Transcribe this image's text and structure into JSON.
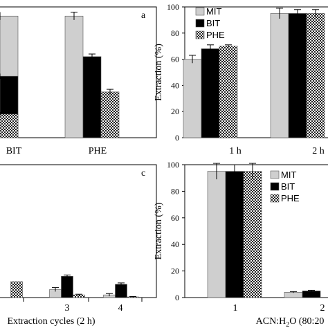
{
  "chart_data": [
    {
      "type": "bar",
      "panel_label": "a",
      "categories": [
        "",
        "BIT",
        "PHE"
      ],
      "xlabel": "",
      "ylabel": "",
      "ylim": [
        0,
        100
      ],
      "series": [
        {
          "name": "MIT",
          "values": [
            93,
            93,
            93
          ],
          "errors": [
            3,
            3,
            3
          ]
        },
        {
          "name": "BIT",
          "values": [
            null,
            62,
            47
          ],
          "errors": [
            null,
            2,
            2
          ]
        },
        {
          "name": "PHE",
          "values": [
            null,
            35,
            18
          ],
          "errors": [
            null,
            2,
            1.5
          ]
        }
      ]
    },
    {
      "type": "bar",
      "panel_label": "",
      "categories": [
        "1 h",
        "2 h"
      ],
      "xlabel": "",
      "ylabel": "Extraction (%)",
      "ylim": [
        0,
        100
      ],
      "yticks": [
        0,
        20,
        40,
        60,
        80,
        100
      ],
      "legend": [
        "MIT",
        "BIT",
        "PHE"
      ],
      "legend_position": "top-left",
      "series": [
        {
          "name": "MIT",
          "values": [
            60,
            95
          ],
          "errors": [
            3,
            4
          ]
        },
        {
          "name": "BIT",
          "values": [
            68,
            95
          ],
          "errors": [
            3,
            3
          ]
        },
        {
          "name": "PHE",
          "values": [
            70,
            95
          ],
          "errors": [
            1,
            3
          ]
        }
      ]
    },
    {
      "type": "bar",
      "panel_label": "c",
      "categories": [
        "",
        "3",
        "4"
      ],
      "xlabel": "Extraction cycles (2 h)",
      "ylabel": "",
      "ylim": [
        0,
        100
      ],
      "series": [
        {
          "name": "MIT",
          "values": [
            null,
            6,
            2
          ],
          "errors": [
            null,
            1.5,
            1
          ]
        },
        {
          "name": "BIT",
          "values": [
            null,
            16,
            10
          ],
          "errors": [
            null,
            1,
            1
          ]
        },
        {
          "name": "PHE",
          "values": [
            12,
            2,
            0.5
          ],
          "errors": [
            null,
            0.5,
            0.3
          ]
        }
      ]
    },
    {
      "type": "bar",
      "panel_label": "",
      "categories": [
        "1",
        "2"
      ],
      "xlabel": "ACN:H2O (80:20",
      "ylabel": "Extraction (%)",
      "ylim": [
        0,
        100
      ],
      "yticks": [
        0,
        20,
        40,
        60,
        80,
        100
      ],
      "legend": [
        "MIT",
        "BIT",
        "PHE"
      ],
      "legend_position": "top-right",
      "series": [
        {
          "name": "MIT",
          "values": [
            95,
            4
          ],
          "errors": [
            6,
            0.5
          ]
        },
        {
          "name": "BIT",
          "values": [
            95,
            5
          ],
          "errors": [
            5,
            0.5
          ]
        },
        {
          "name": "PHE",
          "values": [
            95,
            null
          ],
          "errors": [
            6,
            null
          ]
        }
      ]
    }
  ],
  "colors": {
    "MIT": "#cfcfcf",
    "BIT": "#000000",
    "PHE": "checkered"
  }
}
